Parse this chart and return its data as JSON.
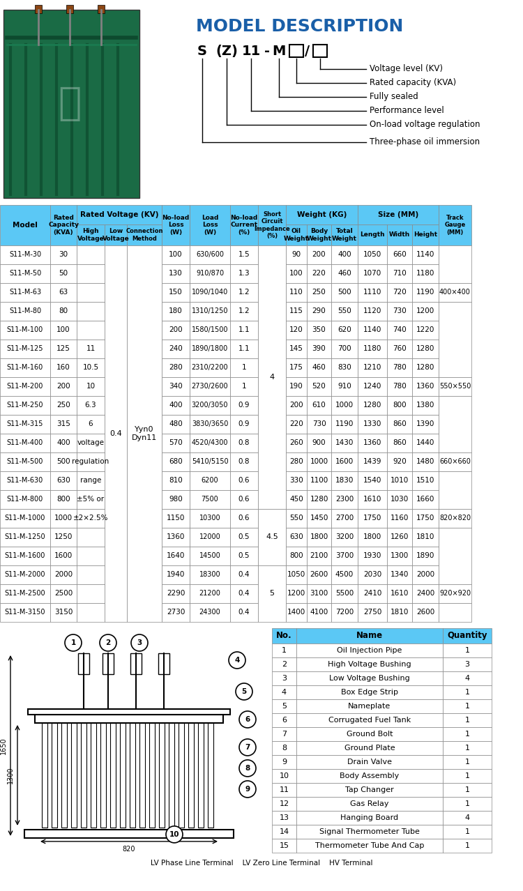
{
  "title": "MODEL DESCRIPTION",
  "model_code": "S  (Z) 11 - M  □/□",
  "model_labels": [
    "Voltage level (KV)",
    "Rated capacity (KVA)",
    "Fully sealed",
    "Performance level",
    "On-load voltage regulation",
    "Three-phase oil immersion"
  ],
  "table_header": [
    "Model",
    "Rated\nCapacity\n(KVA)",
    "High\nVoltage",
    "Low\nVoltage",
    "Connection\nMethod",
    "No-load\nLoss\n(W)",
    "Load\nLoss\n(W)",
    "No-load\nCurrent\n(%)",
    "Short\nCircuit\nImpedance\n(%)",
    "Oil\nWeight",
    "Body\nWeight",
    "Total\nWeight",
    "Length",
    "Width",
    "Height",
    "Track\nGauge\n(MM)"
  ],
  "table_header2": [
    "",
    "Rated Voltage (KV)",
    "",
    "",
    "",
    "",
    "",
    "",
    "",
    "Weight (KG)",
    "",
    "",
    "Size (MM)",
    "",
    "",
    ""
  ],
  "rows": [
    [
      "S11-M-30",
      "30",
      "",
      "",
      "",
      "100",
      "630/600",
      "1.5",
      "",
      "90",
      "200",
      "400",
      "1050",
      "660",
      "1140",
      ""
    ],
    [
      "S11-M-50",
      "50",
      "",
      "",
      "",
      "130",
      "910/870",
      "1.3",
      "",
      "100",
      "220",
      "460",
      "1070",
      "710",
      "1180",
      ""
    ],
    [
      "S11-M-63",
      "63",
      "",
      "",
      "",
      "150",
      "1090/1040",
      "1.2",
      "",
      "110",
      "250",
      "500",
      "1110",
      "720",
      "1190",
      "400×400"
    ],
    [
      "S11-M-80",
      "80",
      "",
      "",
      "",
      "180",
      "1310/1250",
      "1.2",
      "",
      "115",
      "290",
      "550",
      "1120",
      "730",
      "1200",
      ""
    ],
    [
      "S11-M-100",
      "100",
      "",
      "",
      "",
      "200",
      "1580/1500",
      "1.1",
      "",
      "120",
      "350",
      "620",
      "1140",
      "740",
      "1220",
      ""
    ],
    [
      "S11-M-125",
      "125",
      "11",
      "",
      "",
      "240",
      "1890/1800",
      "1.1",
      "4",
      "145",
      "390",
      "700",
      "1180",
      "760",
      "1280",
      ""
    ],
    [
      "S11-M-160",
      "160",
      "10.5",
      "",
      "",
      "280",
      "2310/2200",
      "1",
      "",
      "175",
      "460",
      "830",
      "1210",
      "780",
      "1280",
      ""
    ],
    [
      "S11-M-200",
      "200",
      "10",
      "",
      "",
      "340",
      "2730/2600",
      "1",
      "",
      "190",
      "520",
      "910",
      "1240",
      "780",
      "1360",
      "550×550"
    ],
    [
      "S11-M-250",
      "250",
      "6.3",
      "0.4",
      "Yyn0",
      "400",
      "3200/3050",
      "0.9",
      "",
      "200",
      "610",
      "1000",
      "1280",
      "800",
      "1380",
      ""
    ],
    [
      "S11-M-315",
      "315",
      "6",
      "",
      "Dyn11",
      "480",
      "3830/3650",
      "0.9",
      "",
      "220",
      "730",
      "1190",
      "1330",
      "860",
      "1390",
      ""
    ],
    [
      "S11-M-400",
      "400",
      "voltage",
      "",
      "",
      "570",
      "4520/4300",
      "0.8",
      "",
      "260",
      "900",
      "1430",
      "1360",
      "860",
      "1440",
      ""
    ],
    [
      "S11-M-500",
      "500",
      "regulation",
      "",
      "",
      "680",
      "5410/5150",
      "0.8",
      "",
      "280",
      "1000",
      "1600",
      "1439",
      "920",
      "1480",
      "660×660"
    ],
    [
      "S11-M-630",
      "630",
      "range",
      "",
      "",
      "810",
      "6200",
      "0.6",
      "",
      "330",
      "1100",
      "1830",
      "1540",
      "1010",
      "1510",
      ""
    ],
    [
      "S11-M-800",
      "800",
      "±5% or",
      "",
      "",
      "980",
      "7500",
      "0.6",
      "",
      "450",
      "1280",
      "2300",
      "1610",
      "1030",
      "1660",
      ""
    ],
    [
      "S11-M-1000",
      "1000",
      "±2×2.5%",
      "",
      "",
      "1150",
      "10300",
      "0.6",
      "4.5",
      "550",
      "1450",
      "2700",
      "1750",
      "1160",
      "1750",
      "820×820"
    ],
    [
      "S11-M-1250",
      "1250",
      "",
      "",
      "",
      "1360",
      "12000",
      "0.5",
      "",
      "630",
      "1800",
      "3200",
      "1800",
      "1260",
      "1810",
      ""
    ],
    [
      "S11-M-1600",
      "1600",
      "",
      "",
      "",
      "1640",
      "14500",
      "0.5",
      "",
      "800",
      "2100",
      "3700",
      "1930",
      "1300",
      "1890",
      ""
    ],
    [
      "S11-M-2000",
      "2000",
      "",
      "",
      "",
      "1940",
      "18300",
      "0.4",
      "",
      "1050",
      "2600",
      "4500",
      "2030",
      "1340",
      "2000",
      ""
    ],
    [
      "S11-M-2500",
      "2500",
      "",
      "",
      "",
      "2290",
      "21200",
      "0.4",
      "5",
      "1200",
      "3100",
      "5500",
      "2410",
      "1610",
      "2400",
      "920×920"
    ],
    [
      "S11-M-3150",
      "3150",
      "",
      "",
      "",
      "2730",
      "24300",
      "0.4",
      "",
      "1400",
      "4100",
      "7200",
      "2750",
      "1810",
      "2600",
      ""
    ]
  ],
  "parts_list": [
    [
      1,
      "Oil Injection Pipe",
      1
    ],
    [
      2,
      "High Voltage Bushing",
      3
    ],
    [
      3,
      "Low Voltage Bushing",
      4
    ],
    [
      4,
      "Box Edge Strip",
      1
    ],
    [
      5,
      "Nameplate",
      1
    ],
    [
      6,
      "Corrugated Fuel Tank",
      1
    ],
    [
      7,
      "Ground Bolt",
      1
    ],
    [
      8,
      "Ground Plate",
      1
    ],
    [
      9,
      "Drain Valve",
      1
    ],
    [
      10,
      "Body Assembly",
      1
    ],
    [
      11,
      "Tap Changer",
      1
    ],
    [
      12,
      "Gas Relay",
      1
    ],
    [
      13,
      "Hanging Board",
      4
    ],
    [
      14,
      "Signal Thermometer Tube",
      1
    ],
    [
      15,
      "Thermometer Tube And Cap",
      1
    ]
  ],
  "bg_color_header": "#5bc8f5",
  "bg_color_row_odd": "#ffffff",
  "bg_color_row_even": "#e8f8ff",
  "text_color": "#000000",
  "border_color": "#555555"
}
